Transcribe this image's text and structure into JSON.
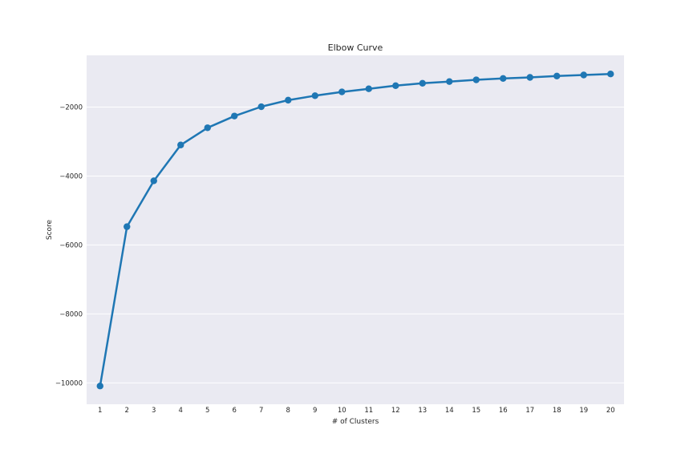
{
  "chart_data": {
    "type": "line",
    "title": "Elbow Curve",
    "xlabel": "# of Clusters",
    "ylabel": "Score",
    "x": [
      1,
      2,
      3,
      4,
      5,
      6,
      7,
      8,
      9,
      10,
      11,
      12,
      13,
      14,
      15,
      16,
      17,
      18,
      19,
      20
    ],
    "series": [
      {
        "values": [
          -10090,
          -5470,
          -4140,
          -3100,
          -2600,
          -2260,
          -1990,
          -1800,
          -1670,
          -1560,
          -1470,
          -1380,
          -1310,
          -1260,
          -1210,
          -1170,
          -1140,
          -1100,
          -1070,
          -1040
        ]
      }
    ],
    "xlim": [
      0.5,
      20.5
    ],
    "ylim": [
      -10620,
      -500
    ],
    "y_ticks": [
      -10000,
      -8000,
      -6000,
      -4000,
      -2000
    ],
    "y_tick_labels": [
      "−10000",
      "−8000",
      "−6000",
      "−4000",
      "−2000"
    ],
    "grid": true,
    "colors": {
      "line": "#1f77b4",
      "plot_background": "#eaeaf2",
      "grid": "#ffffff"
    }
  }
}
